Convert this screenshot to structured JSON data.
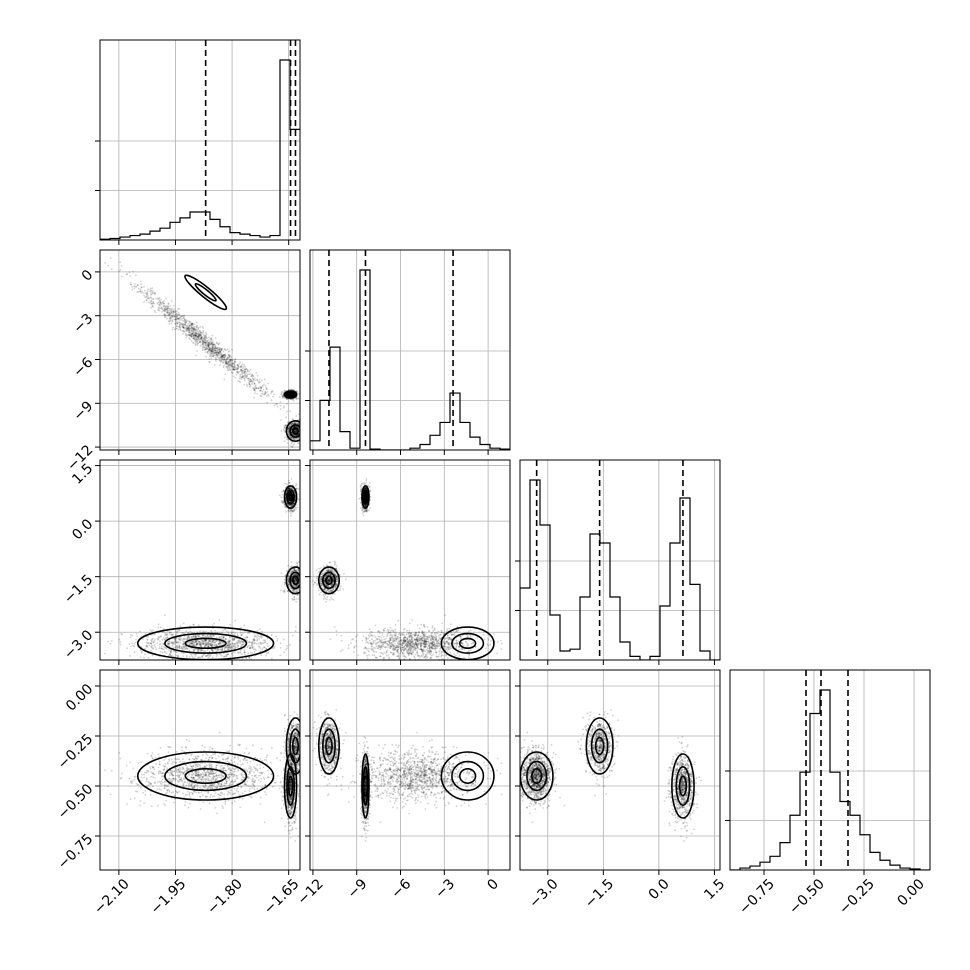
{
  "chart_data": {
    "type": "corner",
    "title": "",
    "parameters": [
      {
        "name": "",
        "range": [
          -2.15,
          -1.62
        ],
        "ticks": [
          -2.1,
          -1.95,
          -1.8,
          -1.65
        ],
        "tick_labels": [
          "−2.10",
          "−1.95",
          "−1.80",
          "−1.65"
        ],
        "quantiles": [
          -1.87,
          -1.645,
          -1.632
        ],
        "hist": {
          "edges": [
            -2.15,
            -2.1235,
            -2.097,
            -2.0705,
            -2.044,
            -2.0175,
            -1.991,
            -1.9645,
            -1.938,
            -1.9115,
            -1.885,
            -1.8585,
            -1.832,
            -1.8055,
            -1.779,
            -1.7525,
            -1.726,
            -1.6995,
            -1.673,
            -1.6465,
            -1.62
          ],
          "counts": [
            0.005,
            0.01,
            0.02,
            0.03,
            0.04,
            0.06,
            0.08,
            0.12,
            0.15,
            0.19,
            0.19,
            0.14,
            0.09,
            0.05,
            0.04,
            0.03,
            0.02,
            0.03,
            1.22,
            0.75
          ]
        }
      },
      {
        "name": "",
        "range": [
          -12.2,
          1.5
        ],
        "ticks": [
          -12,
          -9,
          -6,
          -3,
          0
        ],
        "tick_labels": [
          "−12",
          "−9",
          "−6",
          "−3",
          "0"
        ],
        "quantiles": [
          -10.9,
          -8.4,
          -2.4
        ],
        "hist": {
          "edges": [
            -12.2,
            -11.515,
            -10.83,
            -10.145,
            -9.46,
            -8.775,
            -8.09,
            -7.405,
            -6.72,
            -6.035,
            -5.35,
            -4.665,
            -3.98,
            -3.295,
            -2.61,
            -1.925,
            -1.24,
            -0.555,
            0.13,
            0.815,
            1.5
          ],
          "counts": [
            0.05,
            0.27,
            0.56,
            0.1,
            0.01,
            0.98,
            0.005,
            0.0,
            0.0,
            0.0,
            0.01,
            0.03,
            0.08,
            0.15,
            0.31,
            0.15,
            0.07,
            0.03,
            0.01,
            0.005
          ]
        }
      },
      {
        "name": "",
        "range": [
          -3.75,
          1.65
        ],
        "ticks": [
          -3.0,
          -1.5,
          0.0,
          1.5
        ],
        "tick_labels": [
          "−3.0",
          "−1.5",
          "0.0",
          "1.5"
        ],
        "quantiles": [
          -3.3,
          -1.6,
          0.65
        ],
        "hist": {
          "edges": [
            -3.75,
            -3.48,
            -3.21,
            -2.94,
            -2.67,
            -2.4,
            -2.13,
            -1.86,
            -1.59,
            -1.32,
            -1.05,
            -0.78,
            -0.51,
            -0.24,
            0.03,
            0.3,
            0.57,
            0.84,
            1.11,
            1.38,
            1.65
          ],
          "counts": [
            0.4,
            1.0,
            0.75,
            0.25,
            0.05,
            0.06,
            0.35,
            0.7,
            0.65,
            0.35,
            0.1,
            0.02,
            0.0,
            0.02,
            0.3,
            0.65,
            0.9,
            0.42,
            0.05,
            0.0
          ]
        }
      },
      {
        "name": "",
        "range": [
          -0.92,
          0.08
        ],
        "ticks": [
          -0.75,
          -0.5,
          -0.25,
          0.0
        ],
        "tick_labels": [
          "−0.75",
          "−0.50",
          "−0.25",
          "0.00"
        ],
        "quantiles": [
          -0.54,
          -0.465,
          -0.33
        ],
        "hist": {
          "edges": [
            -0.92,
            -0.87,
            -0.82,
            -0.77,
            -0.72,
            -0.67,
            -0.62,
            -0.57,
            -0.52,
            -0.47,
            -0.42,
            -0.37,
            -0.32,
            -0.27,
            -0.22,
            -0.17,
            -0.12,
            -0.07,
            -0.02,
            0.03,
            0.08
          ],
          "counts": [
            0.0,
            0.01,
            0.02,
            0.04,
            0.07,
            0.14,
            0.28,
            0.5,
            0.8,
            0.92,
            0.5,
            0.35,
            0.28,
            0.18,
            0.09,
            0.05,
            0.025,
            0.01,
            0.005,
            0.0
          ]
        }
      }
    ],
    "modes": [
      {
        "x": [
          -1.87,
          -1.4,
          -3.3,
          -0.45
        ],
        "sd": [
          0.09,
          0.9,
          0.22,
          0.06
        ],
        "w": 0.45,
        "sharp": false
      },
      {
        "x": [
          -1.645,
          -8.4,
          0.65,
          -0.5
        ],
        "sd": [
          0.008,
          0.12,
          0.15,
          0.08
        ],
        "w": 0.3,
        "sharp": true
      },
      {
        "x": [
          -1.632,
          -10.9,
          -1.6,
          -0.3
        ],
        "sd": [
          0.012,
          0.35,
          0.18,
          0.07
        ],
        "w": 0.25,
        "sharp": true
      }
    ],
    "grid": true,
    "legend": "none"
  }
}
